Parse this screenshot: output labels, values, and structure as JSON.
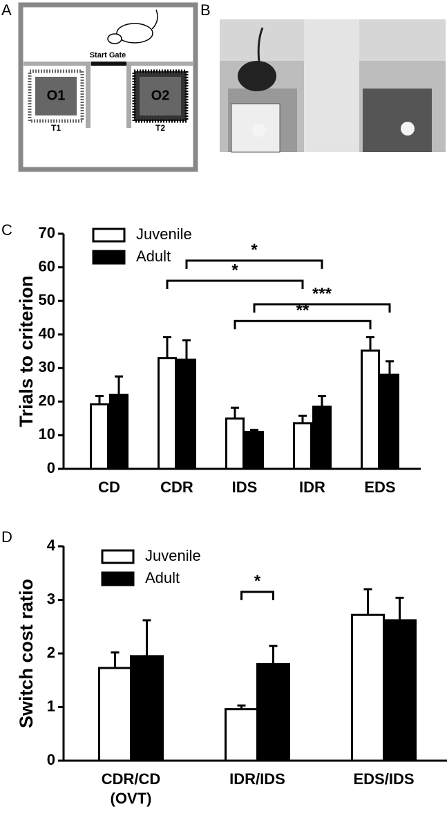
{
  "panels": [
    "A",
    "B",
    "C",
    "D"
  ],
  "diagram": {
    "gate": "Start Gate",
    "bowls": [
      "O1",
      "O2"
    ],
    "zones": [
      "T1",
      "T2"
    ]
  },
  "chart_data": [
    {
      "type": "bar",
      "ylabel": "Trials to criterion",
      "categories": [
        [
          "CD"
        ],
        [
          "CDR"
        ],
        [
          "IDS"
        ],
        [
          "IDR"
        ],
        [
          "EDS"
        ]
      ],
      "series": [
        {
          "name": "Juvenile",
          "color": "#ffffff",
          "values": [
            19.2,
            33,
            15,
            13.6,
            35.2
          ],
          "errors": [
            2.5,
            6.2,
            3.2,
            2.2,
            4
          ]
        },
        {
          "name": "Adult",
          "color": "#000000",
          "values": [
            22,
            32.5,
            11,
            18.5,
            28
          ],
          "errors": [
            5.5,
            5.8,
            0.6,
            3.2,
            4
          ]
        }
      ],
      "ylim": [
        0,
        70
      ],
      "yticks": [
        0,
        10,
        20,
        30,
        40,
        50,
        60,
        70
      ],
      "legend": "upper left",
      "annotations": [
        {
          "text": "*",
          "y": 62,
          "between": [
            [
              1,
              1
            ],
            [
              3,
              1
            ]
          ]
        },
        {
          "text": "*",
          "y": 56,
          "between": [
            [
              1,
              0
            ],
            [
              3,
              0
            ]
          ]
        },
        {
          "text": "***",
          "y": 49,
          "between": [
            [
              2,
              1
            ],
            [
              4,
              1
            ]
          ]
        },
        {
          "text": "**",
          "y": 44,
          "between": [
            [
              2,
              0
            ],
            [
              4,
              0
            ]
          ]
        }
      ]
    },
    {
      "type": "bar",
      "ylabel": "Switch cost ratio",
      "categories": [
        [
          "CDR/CD",
          "(OVT)"
        ],
        [
          "IDR/IDS"
        ],
        [
          "EDS/IDS"
        ]
      ],
      "series": [
        {
          "name": "Juvenile",
          "color": "#ffffff",
          "values": [
            1.73,
            0.96,
            2.72
          ],
          "errors": [
            0.29,
            0.07,
            0.48
          ]
        },
        {
          "name": "Adult",
          "color": "#000000",
          "values": [
            1.95,
            1.8,
            2.62
          ],
          "errors": [
            0.67,
            0.34,
            0.42
          ]
        }
      ],
      "ylim": [
        0,
        4
      ],
      "yticks": [
        0,
        1,
        2,
        3,
        4
      ],
      "legend": "upper left",
      "annotations": [
        {
          "text": "*",
          "y": 3.15,
          "between": [
            [
              1,
              0
            ],
            [
              1,
              1
            ]
          ]
        }
      ]
    }
  ]
}
